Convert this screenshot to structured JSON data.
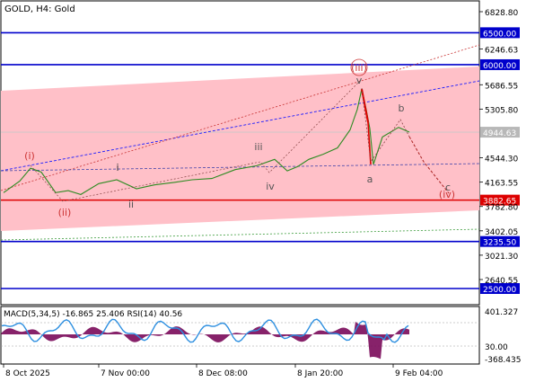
{
  "header": {
    "title": "GOLD, H4:  Gold"
  },
  "colors": {
    "channel_fill": "#ffc0c8",
    "price_line": "#2e8b22",
    "level_blue": "#0000cc",
    "level_red": "#dd0000",
    "trend_blue": "#1a1aff",
    "trend_red": "#c83232",
    "trend_green": "#3c9c3c",
    "wave_label": "#cc3333",
    "macd_hist": "#7a0a5a",
    "rsi_line": "#2d8fe0"
  },
  "chart_data": [
    {
      "type": "line",
      "title": "GOLD, H4:  Gold",
      "y_axis": {
        "min": 2500,
        "max": 6900,
        "ticks": [
          "6828.80",
          "6246.63",
          "5686.55",
          "5305.80",
          "4544.30",
          "4163.55",
          "3782.80",
          "3402.05",
          "3021.30",
          "2640.55"
        ]
      },
      "x_axis": {
        "ticks": [
          "8 Oct 2025",
          "7 Nov 00:00",
          "8 Dec 08:00",
          "8 Jan 20:00",
          "9 Feb 04:00"
        ]
      },
      "levels": [
        {
          "value": 6500,
          "label": "6500.00",
          "color": "blue"
        },
        {
          "value": 6000,
          "label": "6000.00",
          "color": "blue"
        },
        {
          "value": 3882.65,
          "label": "3882.65",
          "color": "red"
        },
        {
          "value": 3235.5,
          "label": "3235.50",
          "color": "blue"
        },
        {
          "value": 2500,
          "label": "2500.00",
          "color": "blue"
        }
      ],
      "current_price": {
        "value": 4944.63,
        "label": "4944.63"
      },
      "price_series": {
        "name": "",
        "x": [
          "8 Oct",
          "14 Oct",
          "18 Oct",
          "22 Oct",
          "26 Oct",
          "30 Oct",
          "3 Nov",
          "7 Nov",
          "12 Nov",
          "17 Nov",
          "22 Nov",
          "27 Nov",
          "2 Dec",
          "8 Dec",
          "14 Dec",
          "20 Dec",
          "26 Dec",
          "31 Dec",
          "4 Jan",
          "8 Jan",
          "13 Jan",
          "18 Jan",
          "23 Jan",
          "26 Jan",
          "27 Jan",
          "29 Jan",
          "31 Jan",
          "2 Feb",
          "5 Feb",
          "9 Feb",
          "12 Feb"
        ],
        "values": [
          4000,
          4180,
          4380,
          4320,
          4000,
          4030,
          3970,
          4140,
          4200,
          4060,
          4120,
          4160,
          4200,
          4220,
          4360,
          4420,
          4520,
          4340,
          4410,
          4520,
          4600,
          4700,
          4980,
          5300,
          5620,
          5300,
          5000,
          4440,
          4870,
          5020,
          4945
        ]
      },
      "wave_labels": [
        "(i)",
        "(ii)",
        "i",
        "ii",
        "iii",
        "iv",
        "(iii)",
        "v",
        "a",
        "b",
        "c",
        "(iv)"
      ],
      "macd_panel": {
        "label": "MACD(5,34,5) -16.865 25.406 RSI(14) 40.56",
        "y_ticks": [
          "401.327",
          "30.00",
          "-368.435"
        ],
        "macd": [
          -16.865
        ],
        "signal": [
          25.406
        ],
        "rsi": [
          40.56
        ]
      }
    }
  ]
}
